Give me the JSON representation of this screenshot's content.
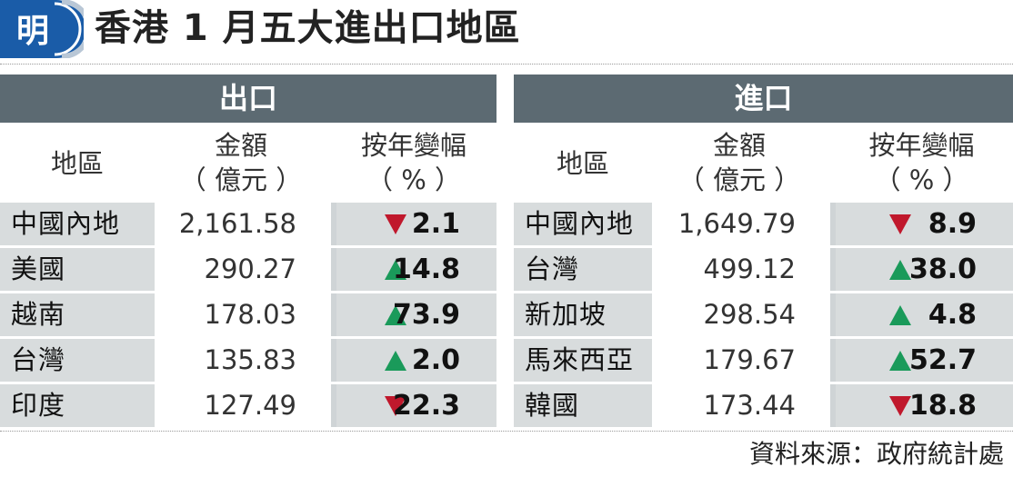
{
  "logo_char": "明",
  "title": "香港 1 月五大進出口地區",
  "colors": {
    "header_bg": "#5c6a72",
    "logo_blue": "#1a5ca8",
    "up": "#1a9a5a",
    "down": "#c0182c",
    "row_shade": "#d8dcdd"
  },
  "exports": {
    "heading": "出口",
    "col_region": "地區",
    "col_amount": [
      "金額",
      "（ 億元 ）"
    ],
    "col_change": [
      "按年變幅",
      "（ % ）"
    ],
    "rows": [
      {
        "region": "中國內地",
        "amount": "2,161.58",
        "dir": "down",
        "change": "2.1"
      },
      {
        "region": "美國",
        "amount": "290.27",
        "dir": "up",
        "change": "14.8"
      },
      {
        "region": "越南",
        "amount": "178.03",
        "dir": "up",
        "change": "73.9"
      },
      {
        "region": "台灣",
        "amount": "135.83",
        "dir": "up",
        "change": "2.0"
      },
      {
        "region": "印度",
        "amount": "127.49",
        "dir": "down",
        "change": "22.3"
      }
    ]
  },
  "imports": {
    "heading": "進口",
    "col_region": "地區",
    "col_amount": [
      "金額",
      "（ 億元 ）"
    ],
    "col_change": [
      "按年變幅",
      "（ % ）"
    ],
    "rows": [
      {
        "region": "中國內地",
        "amount": "1,649.79",
        "dir": "down",
        "change": "8.9"
      },
      {
        "region": "台灣",
        "amount": "499.12",
        "dir": "up",
        "change": "38.0"
      },
      {
        "region": "新加坡",
        "amount": "298.54",
        "dir": "up",
        "change": "4.8"
      },
      {
        "region": "馬來西亞",
        "amount": "179.67",
        "dir": "up",
        "change": "52.7"
      },
      {
        "region": "韓國",
        "amount": "173.44",
        "dir": "down",
        "change": "18.8"
      }
    ]
  },
  "source": "資料來源：政府統計處"
}
